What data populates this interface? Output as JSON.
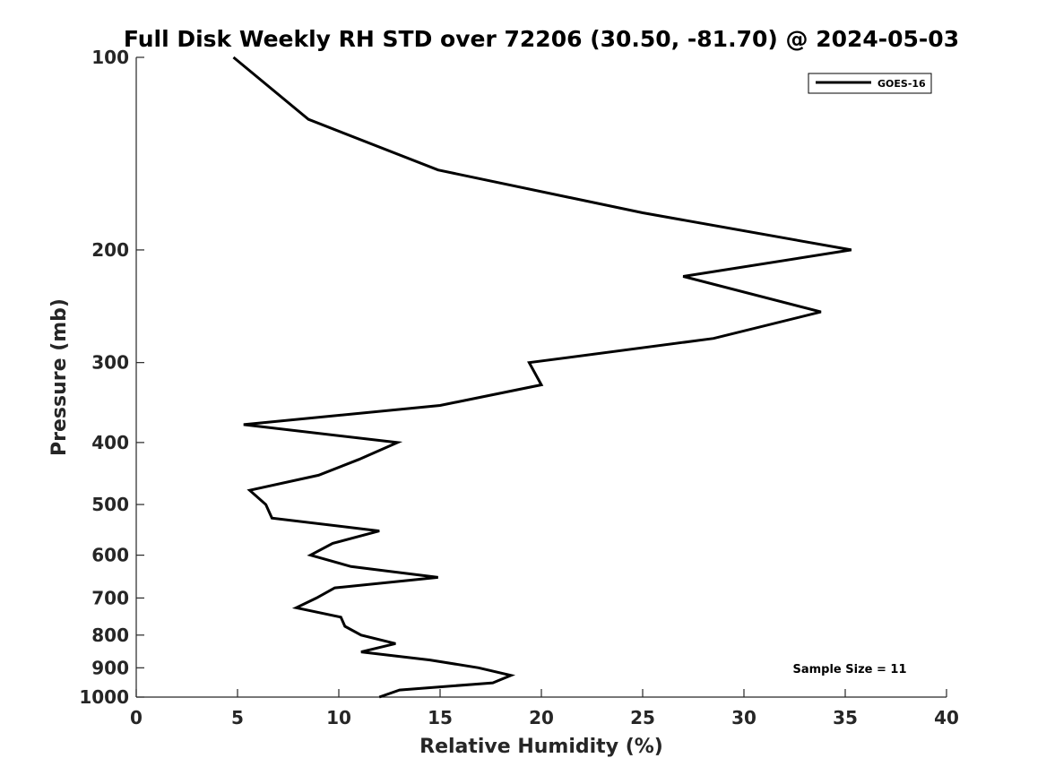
{
  "chart_data": {
    "type": "line",
    "title": "Full Disk Weekly RH STD over 72206 (30.50, -81.70) @ 2024-05-03",
    "xlabel": "Relative Humidity (%)",
    "ylabel": "Pressure (mb)",
    "xlim": [
      0,
      40
    ],
    "ylim": [
      100,
      1000
    ],
    "y_scale": "log",
    "y_reversed": true,
    "x_ticks": [
      0,
      5,
      10,
      15,
      20,
      25,
      30,
      35,
      40
    ],
    "y_ticks": [
      100,
      200,
      300,
      400,
      500,
      600,
      700,
      800,
      900,
      1000
    ],
    "grid": false,
    "legend": {
      "placement": "top-right",
      "entries": [
        "GOES-16"
      ]
    },
    "annotation": "Sample Size = 11",
    "series": [
      {
        "name": "GOES-16",
        "color": "#000000",
        "points": [
          {
            "x": 4.8,
            "p": 100
          },
          {
            "x": 8.5,
            "p": 125
          },
          {
            "x": 14.9,
            "p": 150
          },
          {
            "x": 25.0,
            "p": 175
          },
          {
            "x": 35.3,
            "p": 200
          },
          {
            "x": 27.0,
            "p": 220
          },
          {
            "x": 33.8,
            "p": 250
          },
          {
            "x": 28.5,
            "p": 275
          },
          {
            "x": 19.4,
            "p": 300
          },
          {
            "x": 20.0,
            "p": 325
          },
          {
            "x": 15.0,
            "p": 350
          },
          {
            "x": 5.3,
            "p": 375
          },
          {
            "x": 12.9,
            "p": 400
          },
          {
            "x": 11.0,
            "p": 425
          },
          {
            "x": 9.0,
            "p": 450
          },
          {
            "x": 5.6,
            "p": 475
          },
          {
            "x": 6.4,
            "p": 500
          },
          {
            "x": 6.7,
            "p": 525
          },
          {
            "x": 12.0,
            "p": 550
          },
          {
            "x": 9.7,
            "p": 575
          },
          {
            "x": 8.6,
            "p": 600
          },
          {
            "x": 10.6,
            "p": 625
          },
          {
            "x": 14.9,
            "p": 650
          },
          {
            "x": 9.8,
            "p": 675
          },
          {
            "x": 8.9,
            "p": 700
          },
          {
            "x": 7.9,
            "p": 725
          },
          {
            "x": 10.1,
            "p": 750
          },
          {
            "x": 10.3,
            "p": 775
          },
          {
            "x": 11.1,
            "p": 800
          },
          {
            "x": 12.8,
            "p": 825
          },
          {
            "x": 11.1,
            "p": 850
          },
          {
            "x": 14.5,
            "p": 875
          },
          {
            "x": 16.9,
            "p": 900
          },
          {
            "x": 18.5,
            "p": 925
          },
          {
            "x": 17.6,
            "p": 950
          },
          {
            "x": 13.0,
            "p": 975
          },
          {
            "x": 12.0,
            "p": 1000
          }
        ]
      }
    ]
  }
}
